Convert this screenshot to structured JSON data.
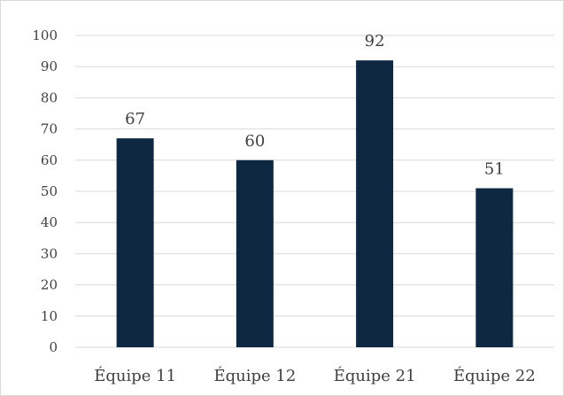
{
  "chart_data": {
    "type": "bar",
    "categories": [
      "Équipe 11",
      "Équipe 12",
      "Équipe 21",
      "Équipe 22"
    ],
    "values": [
      67,
      60,
      92,
      51
    ],
    "data_labels": [
      "67",
      "60",
      "92",
      "51"
    ],
    "y_ticks": [
      "0",
      "10",
      "20",
      "30",
      "40",
      "50",
      "60",
      "70",
      "80",
      "90",
      "100"
    ],
    "ylim": [
      0,
      100
    ],
    "title": "",
    "xlabel": "",
    "ylabel": "",
    "grid": true,
    "legend": "none",
    "colors": {
      "bar": "#0e2841",
      "grid": "#d9d9d9",
      "text": "#404040"
    }
  }
}
